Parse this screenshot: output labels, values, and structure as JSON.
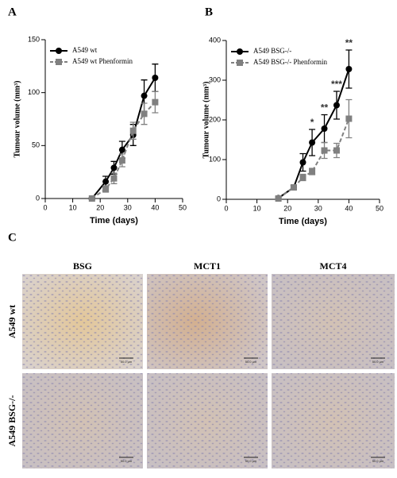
{
  "chart_data": [
    {
      "type": "line",
      "panel_label": "A",
      "x_label": "Time (days)",
      "y_label": "Tumour volume (mm³)",
      "x": [
        17,
        22,
        25,
        28,
        32,
        36,
        40
      ],
      "xlim": [
        0,
        50
      ],
      "xticks": [
        0,
        10,
        20,
        30,
        40,
        50
      ],
      "ylim": [
        0,
        150
      ],
      "yticks": [
        0,
        50,
        100,
        150
      ],
      "series": [
        {
          "name": "A549 wt",
          "color": "#000000",
          "marker": "circle",
          "dash": false,
          "values": [
            0,
            16,
            29,
            46,
            60,
            97,
            114
          ],
          "errors": [
            1,
            5,
            6,
            8,
            10,
            15,
            13
          ]
        },
        {
          "name": "A549 wt Phenformin",
          "color": "#808080",
          "marker": "square",
          "dash": true,
          "values": [
            0,
            9,
            19,
            36,
            64,
            80,
            91
          ],
          "errors": [
            1,
            3,
            5,
            6,
            8,
            10,
            10
          ]
        }
      ]
    },
    {
      "type": "line",
      "panel_label": "B",
      "x_label": "Time (days)",
      "y_label": "Tumour volume (mm³)",
      "x": [
        17,
        22,
        25,
        28,
        32,
        36,
        40
      ],
      "xlim": [
        0,
        50
      ],
      "xticks": [
        0,
        10,
        20,
        30,
        40,
        50
      ],
      "ylim": [
        0,
        400
      ],
      "yticks": [
        0,
        100,
        200,
        300,
        400
      ],
      "series": [
        {
          "name": "A549 BSG-/-",
          "color": "#000000",
          "marker": "circle",
          "dash": false,
          "values": [
            3,
            30,
            93,
            143,
            178,
            237,
            328
          ],
          "errors": [
            3,
            5,
            22,
            33,
            35,
            35,
            48
          ]
        },
        {
          "name": "A549 BSG-/- Phenformin",
          "color": "#808080",
          "marker": "square",
          "dash": true,
          "values": [
            2,
            30,
            55,
            70,
            123,
            123,
            203
          ],
          "errors": [
            2,
            4,
            8,
            8,
            20,
            18,
            48
          ]
        }
      ],
      "annotations": [
        {
          "x": 28,
          "text": "*"
        },
        {
          "x": 32,
          "text": "**"
        },
        {
          "x": 36,
          "text": "***"
        },
        {
          "x": 40,
          "text": "**"
        }
      ]
    }
  ],
  "image_grid": {
    "panel_label": "C",
    "columns": [
      "BSG",
      "MCT1",
      "MCT4"
    ],
    "rows": [
      "A549 wt",
      "A549 BSG-/-"
    ],
    "scale_bar": "50.0 µm"
  }
}
